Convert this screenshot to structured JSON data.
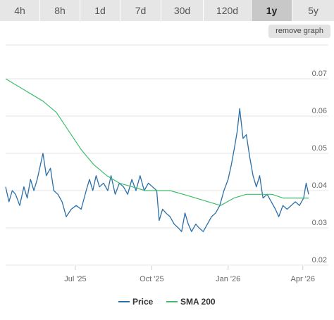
{
  "timeframes": [
    {
      "label": "4h",
      "active": false
    },
    {
      "label": "8h",
      "active": false
    },
    {
      "label": "1d",
      "active": false
    },
    {
      "label": "7d",
      "active": false
    },
    {
      "label": "30d",
      "active": false
    },
    {
      "label": "120d",
      "active": false
    },
    {
      "label": "1y",
      "active": true
    },
    {
      "label": "5y",
      "active": false
    }
  ],
  "remove_graph_label": "remove graph",
  "colors": {
    "price": "#2a6fa8",
    "sma": "#3dbd6a",
    "grid": "#e6e6e6",
    "active_tab": "#c8c8c8"
  },
  "chart_data": {
    "type": "line",
    "title": "",
    "xlabel": "",
    "ylabel": "",
    "ylim": [
      0.02,
      0.07
    ],
    "y_ticks": [
      "0.02",
      "0.03",
      "0.04",
      "0.05",
      "0.06",
      "0.07"
    ],
    "x_ticks": [
      "Jul '25",
      "Oct '25",
      "Jan '26",
      "Apr '26"
    ],
    "x_tick_dates": [
      "2025-07-01",
      "2025-10-01",
      "2026-01-01",
      "2026-04-01"
    ],
    "x_range": [
      "2025-04-08",
      "2026-04-08"
    ],
    "grid": true,
    "legend_position": "bottom",
    "series": [
      {
        "name": "Price",
        "points": [
          [
            "2025-04-08",
            0.041
          ],
          [
            "2025-04-12",
            0.037
          ],
          [
            "2025-04-16",
            0.04
          ],
          [
            "2025-04-20",
            0.039
          ],
          [
            "2025-04-25",
            0.036
          ],
          [
            "2025-04-30",
            0.041
          ],
          [
            "2025-05-04",
            0.038
          ],
          [
            "2025-05-08",
            0.043
          ],
          [
            "2025-05-12",
            0.04
          ],
          [
            "2025-05-16",
            0.043
          ],
          [
            "2025-05-20",
            0.047
          ],
          [
            "2025-05-23",
            0.05
          ],
          [
            "2025-05-27",
            0.044
          ],
          [
            "2025-06-01",
            0.046
          ],
          [
            "2025-06-05",
            0.04
          ],
          [
            "2025-06-10",
            0.039
          ],
          [
            "2025-06-15",
            0.037
          ],
          [
            "2025-06-20",
            0.033
          ],
          [
            "2025-06-26",
            0.035
          ],
          [
            "2025-07-02",
            0.036
          ],
          [
            "2025-07-08",
            0.035
          ],
          [
            "2025-07-14",
            0.04
          ],
          [
            "2025-07-18",
            0.043
          ],
          [
            "2025-07-22",
            0.04
          ],
          [
            "2025-07-26",
            0.044
          ],
          [
            "2025-07-30",
            0.041
          ],
          [
            "2025-08-04",
            0.042
          ],
          [
            "2025-08-09",
            0.04
          ],
          [
            "2025-08-13",
            0.044
          ],
          [
            "2025-08-18",
            0.039
          ],
          [
            "2025-08-23",
            0.042
          ],
          [
            "2025-08-28",
            0.041
          ],
          [
            "2025-09-02",
            0.039
          ],
          [
            "2025-09-07",
            0.043
          ],
          [
            "2025-09-12",
            0.04
          ],
          [
            "2025-09-17",
            0.044
          ],
          [
            "2025-09-22",
            0.04
          ],
          [
            "2025-09-27",
            0.042
          ],
          [
            "2025-10-02",
            0.041
          ],
          [
            "2025-10-07",
            0.04
          ],
          [
            "2025-10-10",
            0.032
          ],
          [
            "2025-10-14",
            0.035
          ],
          [
            "2025-10-18",
            0.034
          ],
          [
            "2025-10-23",
            0.033
          ],
          [
            "2025-10-28",
            0.031
          ],
          [
            "2025-11-02",
            0.03
          ],
          [
            "2025-11-06",
            0.029
          ],
          [
            "2025-11-10",
            0.034
          ],
          [
            "2025-11-14",
            0.031
          ],
          [
            "2025-11-18",
            0.029
          ],
          [
            "2025-11-23",
            0.031
          ],
          [
            "2025-11-27",
            0.03
          ],
          [
            "2025-12-02",
            0.029
          ],
          [
            "2025-12-07",
            0.031
          ],
          [
            "2025-12-12",
            0.033
          ],
          [
            "2025-12-17",
            0.034
          ],
          [
            "2025-12-22",
            0.036
          ],
          [
            "2025-12-27",
            0.04
          ],
          [
            "2026-01-01",
            0.043
          ],
          [
            "2026-01-05",
            0.047
          ],
          [
            "2026-01-09",
            0.052
          ],
          [
            "2026-01-12",
            0.056
          ],
          [
            "2026-01-15",
            0.062
          ],
          [
            "2026-01-19",
            0.054
          ],
          [
            "2026-01-23",
            0.055
          ],
          [
            "2026-01-27",
            0.049
          ],
          [
            "2026-01-31",
            0.044
          ],
          [
            "2026-02-04",
            0.041
          ],
          [
            "2026-02-08",
            0.044
          ],
          [
            "2026-02-12",
            0.038
          ],
          [
            "2026-02-17",
            0.039
          ],
          [
            "2026-02-22",
            0.037
          ],
          [
            "2026-02-27",
            0.035
          ],
          [
            "2026-03-03",
            0.033
          ],
          [
            "2026-03-08",
            0.036
          ],
          [
            "2026-03-13",
            0.035
          ],
          [
            "2026-03-18",
            0.036
          ],
          [
            "2026-03-23",
            0.037
          ],
          [
            "2026-03-28",
            0.036
          ],
          [
            "2026-04-02",
            0.038
          ],
          [
            "2026-04-05",
            0.042
          ],
          [
            "2026-04-08",
            0.039
          ]
        ]
      },
      {
        "name": "SMA 200",
        "points": [
          [
            "2025-04-08",
            0.07
          ],
          [
            "2025-04-23",
            0.068
          ],
          [
            "2025-05-08",
            0.066
          ],
          [
            "2025-05-23",
            0.064
          ],
          [
            "2025-06-08",
            0.061
          ],
          [
            "2025-06-23",
            0.056
          ],
          [
            "2025-07-08",
            0.051
          ],
          [
            "2025-07-23",
            0.047
          ],
          [
            "2025-08-08",
            0.044
          ],
          [
            "2025-08-23",
            0.042
          ],
          [
            "2025-09-08",
            0.041
          ],
          [
            "2025-09-23",
            0.04
          ],
          [
            "2025-10-08",
            0.04
          ],
          [
            "2025-10-23",
            0.04
          ],
          [
            "2025-11-08",
            0.039
          ],
          [
            "2025-11-23",
            0.038
          ],
          [
            "2025-12-08",
            0.037
          ],
          [
            "2025-12-23",
            0.036
          ],
          [
            "2026-01-08",
            0.038
          ],
          [
            "2026-01-23",
            0.039
          ],
          [
            "2026-02-08",
            0.039
          ],
          [
            "2026-02-23",
            0.039
          ],
          [
            "2026-03-08",
            0.038
          ],
          [
            "2026-03-23",
            0.038
          ],
          [
            "2026-04-08",
            0.038
          ]
        ]
      }
    ]
  }
}
